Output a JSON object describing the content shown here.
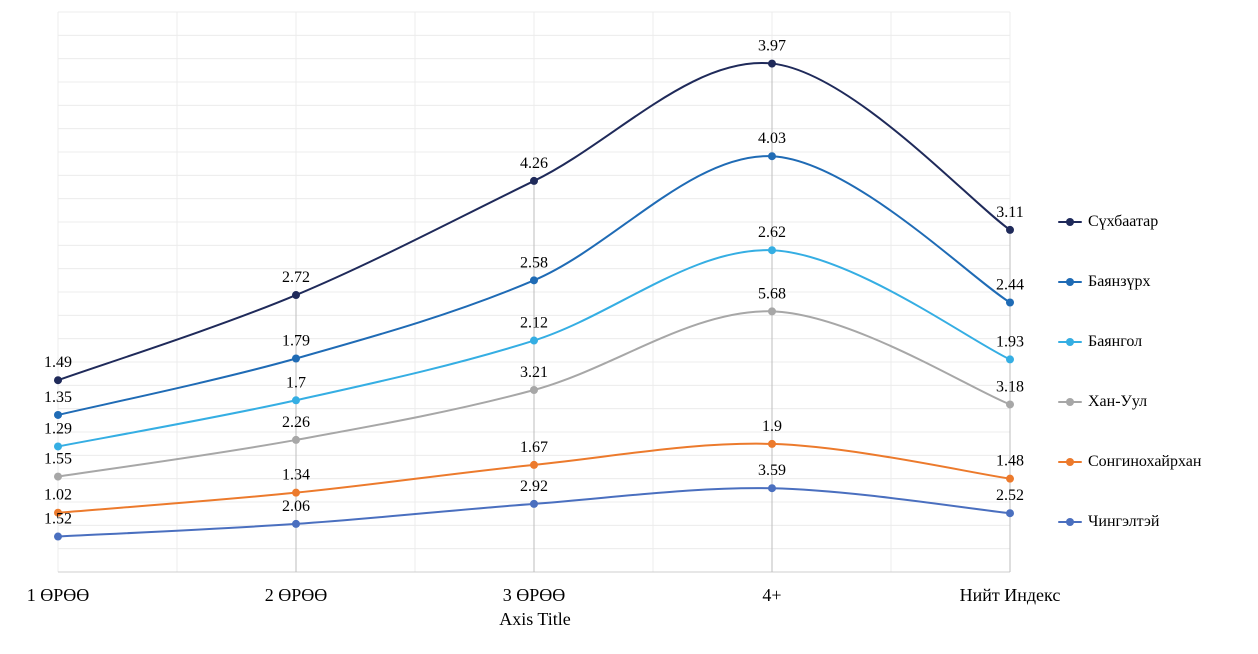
{
  "chart_data": {
    "type": "line",
    "categories": [
      "1 ӨРӨӨ",
      "2 ӨРӨӨ",
      "3 ӨРӨӨ",
      "4+",
      "Нийт Индекс"
    ],
    "xlabel": "Axis Title",
    "ylabel": "",
    "title": "",
    "chart_style": "stacked line with markers and data labels",
    "legend_position": "right",
    "series": [
      {
        "name": "Сүхбаатар",
        "color": "#1f2a5a",
        "values": [
          1.49,
          2.72,
          4.26,
          3.97,
          3.11
        ]
      },
      {
        "name": "Баянзүрх",
        "color": "#1f6bb5",
        "values": [
          1.35,
          1.79,
          2.58,
          4.03,
          2.44
        ]
      },
      {
        "name": "Баянгол",
        "color": "#35aee3",
        "values": [
          1.29,
          1.7,
          2.12,
          2.62,
          1.93
        ]
      },
      {
        "name": "Хан-Уул",
        "color": "#a7a7a7",
        "values": [
          1.55,
          2.26,
          3.21,
          5.68,
          3.18
        ]
      },
      {
        "name": "Сонгинохайрхан",
        "color": "#ec7a2c",
        "values": [
          1.02,
          1.34,
          1.67,
          1.9,
          1.48
        ]
      },
      {
        "name": "Чингэлтэй",
        "color": "#4a6fbf",
        "values": [
          1.52,
          2.06,
          2.92,
          3.59,
          2.52
        ]
      }
    ],
    "plot_order_bottom_to_top": [
      "Чингэлтэй",
      "Сонгинохайрхан",
      "Хан-Уул",
      "Баянгол",
      "Баянзүрх",
      "Сүхбаатар"
    ],
    "ylim": [
      0,
      24
    ],
    "grid": true
  }
}
